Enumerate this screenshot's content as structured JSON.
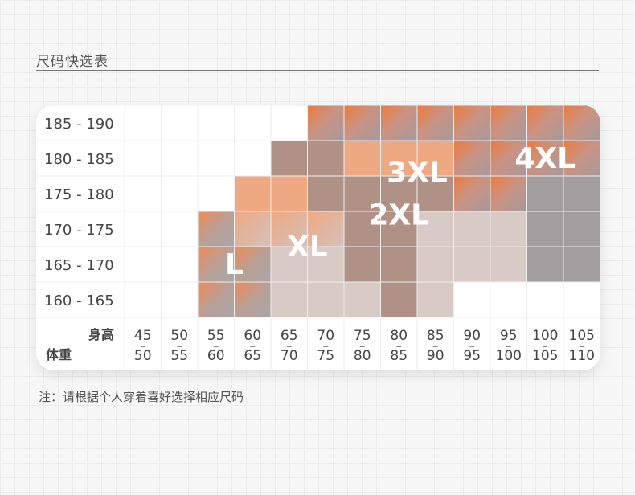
{
  "header": {
    "title": "尺码快选表"
  },
  "note": "注：请根据个人穿着喜好选择相应尺码",
  "chart_data": {
    "type": "heatmap",
    "title": "尺码快选表",
    "row_axis_label": "身高",
    "col_axis_label": "体重",
    "rows": [
      "185 - 190",
      "180 - 185",
      "175 - 180",
      "170 - 175",
      "165 - 170",
      "160 - 165"
    ],
    "columns": [
      {
        "top": "45",
        "bottom": "50"
      },
      {
        "top": "50",
        "bottom": "55"
      },
      {
        "top": "55",
        "bottom": "60"
      },
      {
        "top": "60",
        "bottom": "65"
      },
      {
        "top": "65",
        "bottom": "70"
      },
      {
        "top": "70",
        "bottom": "75"
      },
      {
        "top": "75",
        "bottom": "80"
      },
      {
        "top": "80",
        "bottom": "85"
      },
      {
        "top": "85",
        "bottom": "90"
      },
      {
        "top": "90",
        "bottom": "95"
      },
      {
        "top": "95",
        "bottom": "100"
      },
      {
        "top": "100",
        "bottom": "105"
      },
      {
        "top": "105",
        "bottom": "110"
      }
    ],
    "cells": [
      [
        null,
        null,
        null,
        null,
        null,
        "4XL",
        "4XL",
        "4XL",
        "4XL",
        "4XL",
        "4XL",
        "4XL",
        "4XL"
      ],
      [
        null,
        null,
        null,
        null,
        "3XL",
        "3XL",
        "3XL",
        "3XL",
        "3XL",
        "4XL",
        "4XL",
        "4XL",
        "4XL"
      ],
      [
        null,
        null,
        null,
        "2XL",
        "2XL",
        "3XL",
        "3XL",
        "3XL",
        "3XL",
        "4XL",
        "4XL",
        "4XL",
        "4XL"
      ],
      [
        null,
        null,
        "L",
        "XL",
        "XL",
        "XL",
        "2XL",
        "2XL",
        "2XL",
        "2XL",
        "2XL",
        "4XL",
        "4XL"
      ],
      [
        null,
        null,
        "L",
        "L",
        "XL",
        "XL",
        "2XL",
        "2XL",
        "2XL",
        "2XL",
        "2XL",
        "4XL",
        "4XL"
      ],
      [
        null,
        null,
        "L",
        "L",
        "XL",
        "XL",
        "XL",
        "2XL",
        "2XL",
        null,
        null,
        null,
        null
      ]
    ],
    "size_labels": [
      {
        "text": "L",
        "row": 4.5,
        "col": 3
      },
      {
        "text": "XL",
        "row": 4.0,
        "col": 5
      },
      {
        "text": "2XL",
        "row": 3.1,
        "col": 7.5
      },
      {
        "text": "3XL",
        "row": 1.9,
        "col": 8
      },
      {
        "text": "4XL",
        "row": 1.5,
        "col": 11.5
      }
    ],
    "colors": {
      "orange": "#ef7a3a",
      "peach": "#eea882",
      "taupe": "#b09186",
      "grey": "#a29d9e",
      "light": "#d8cac4",
      "line": "#eeeeee"
    }
  }
}
